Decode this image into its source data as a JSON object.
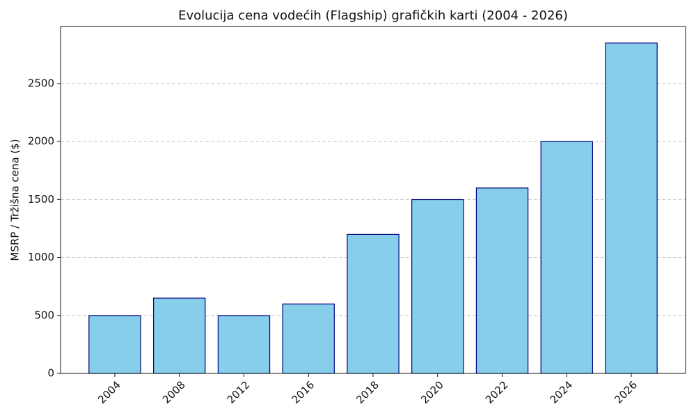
{
  "chart_data": {
    "type": "bar",
    "title": "Evolucija cena vodećih (Flagship) grafičkih karti (2004 - 2026)",
    "y_label": "MSRP / Tržišna cena ($)",
    "categories": [
      "2004",
      "2008",
      "2012",
      "2016",
      "2018",
      "2020",
      "2022",
      "2024",
      "2026"
    ],
    "values": [
      499,
      649,
      499,
      599,
      1199,
      1499,
      1599,
      1999,
      2849
    ],
    "color": "#87ceeb",
    "edge_color": "#000080",
    "ylim": [
      0,
      2992
    ],
    "yticks": [
      0,
      500,
      1000,
      1500,
      2000,
      2500
    ],
    "grid": true
  }
}
